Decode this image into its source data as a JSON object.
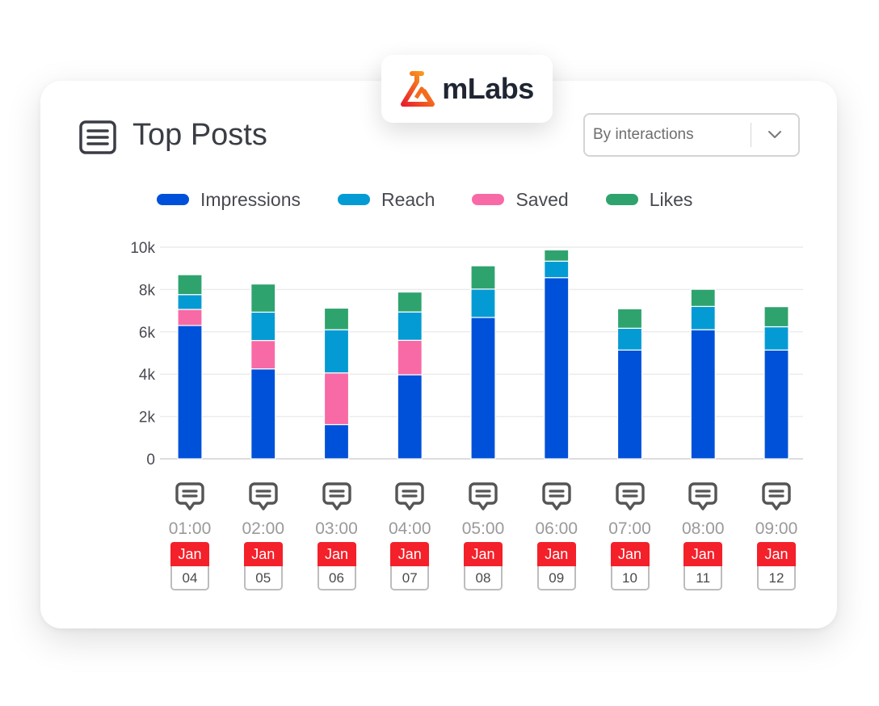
{
  "brand": {
    "name": "mLabs"
  },
  "header": {
    "title": "Top Posts",
    "icon": "list-document-icon"
  },
  "filter": {
    "selected": "By interactions",
    "icon": "chevron-down-icon"
  },
  "colors": {
    "impressions": "#0051d9",
    "reach": "#049bd4",
    "saved": "#f86aa5",
    "likes": "#2fa36e",
    "calendar": "#f4202a"
  },
  "chart_data": {
    "type": "bar",
    "stacked": true,
    "y_ticks": [
      "0",
      "2k",
      "4k",
      "6k",
      "8k",
      "10k"
    ],
    "ylim": [
      0,
      10000
    ],
    "grid": true,
    "legend_position": "top",
    "categories": [
      "01:00",
      "02:00",
      "03:00",
      "04:00",
      "05:00",
      "06:00",
      "07:00",
      "08:00",
      "09:00"
    ],
    "series": [
      {
        "name": "Impressions",
        "color": "#0051d9",
        "values": [
          6300,
          4250,
          1620,
          3970,
          6680,
          8560,
          5140,
          6100,
          5140
        ]
      },
      {
        "name": "Reach",
        "color": "#049bd4",
        "values": [
          700,
          1340,
          2040,
          1340,
          1340,
          780,
          1030,
          1100,
          1100
        ]
      },
      {
        "name": "Saved",
        "color": "#f86aa5",
        "values": [
          760,
          1340,
          2440,
          1630,
          0,
          0,
          0,
          0,
          0
        ]
      },
      {
        "name": "Likes",
        "color": "#2fa36e",
        "values": [
          940,
          1330,
          1020,
          940,
          1100,
          530,
          920,
          810,
          950
        ]
      }
    ]
  },
  "posts": [
    {
      "time": "01:00",
      "month": "Jan",
      "day": "04",
      "icon": "comment-icon"
    },
    {
      "time": "02:00",
      "month": "Jan",
      "day": "05",
      "icon": "comment-icon"
    },
    {
      "time": "03:00",
      "month": "Jan",
      "day": "06",
      "icon": "comment-icon"
    },
    {
      "time": "04:00",
      "month": "Jan",
      "day": "07",
      "icon": "comment-icon"
    },
    {
      "time": "05:00",
      "month": "Jan",
      "day": "08",
      "icon": "comment-icon"
    },
    {
      "time": "06:00",
      "month": "Jan",
      "day": "09",
      "icon": "comment-icon"
    },
    {
      "time": "07:00",
      "month": "Jan",
      "day": "10",
      "icon": "comment-icon"
    },
    {
      "time": "08:00",
      "month": "Jan",
      "day": "11",
      "icon": "comment-icon"
    },
    {
      "time": "09:00",
      "month": "Jan",
      "day": "12",
      "icon": "comment-icon"
    }
  ]
}
